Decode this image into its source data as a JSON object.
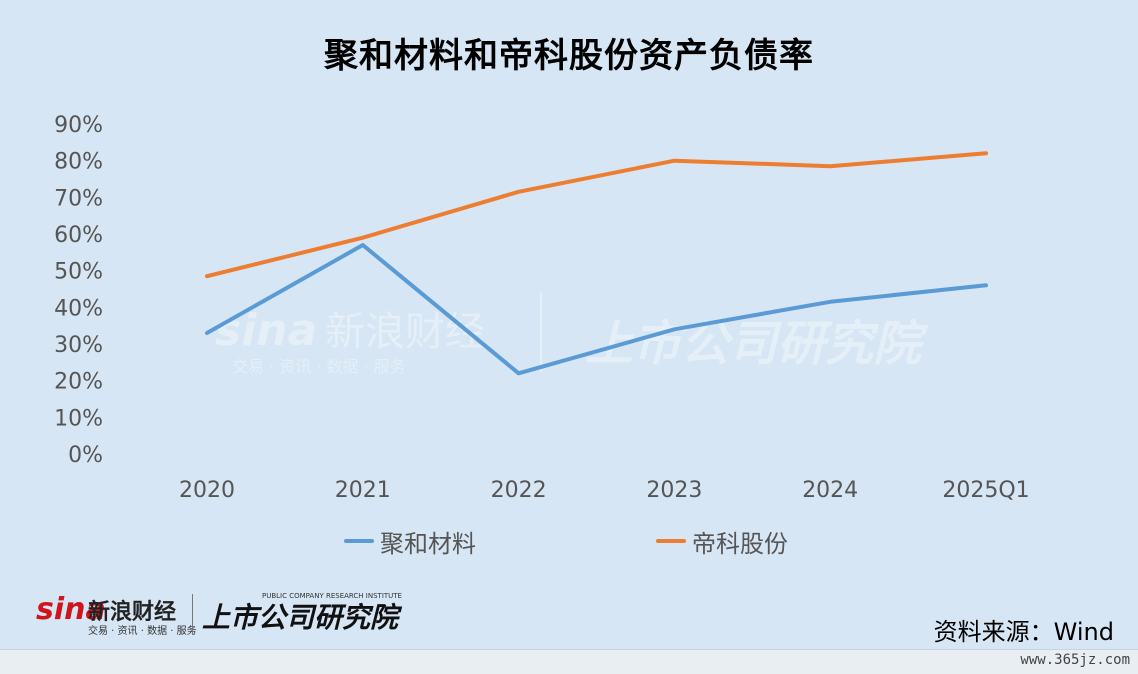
{
  "title": "聚和材料和帝科股份资产负债率",
  "source_text": "资料来源：Wind",
  "site_text": "www.365jz.com",
  "logo": {
    "sina_word": "sina",
    "sina_cn": "新浪财经",
    "sina_sub": "交易 · 资讯 · 数据 · 服务",
    "institute_cn": "上市公司研究院",
    "institute_en": "PUBLIC COMPANY RESEARCH INSTITUTE"
  },
  "chart_data": {
    "type": "line",
    "title": "聚和材料和帝科股份资产负债率",
    "categories": [
      "2020",
      "2021",
      "2022",
      "2023",
      "2024",
      "2025Q1"
    ],
    "y_ticks": [
      "0%",
      "10%",
      "20%",
      "30%",
      "40%",
      "50%",
      "60%",
      "70%",
      "80%",
      "90%"
    ],
    "ylim": [
      0,
      90
    ],
    "grid": false,
    "legend_position": "bottom",
    "series": [
      {
        "name": "聚和材料",
        "color": "#5b9bd5",
        "values": [
          33,
          57,
          22,
          34,
          41.5,
          46
        ]
      },
      {
        "name": "帝科股份",
        "color": "#ed7d31",
        "values": [
          48.5,
          59,
          71.5,
          80,
          78.5,
          82
        ]
      }
    ]
  }
}
